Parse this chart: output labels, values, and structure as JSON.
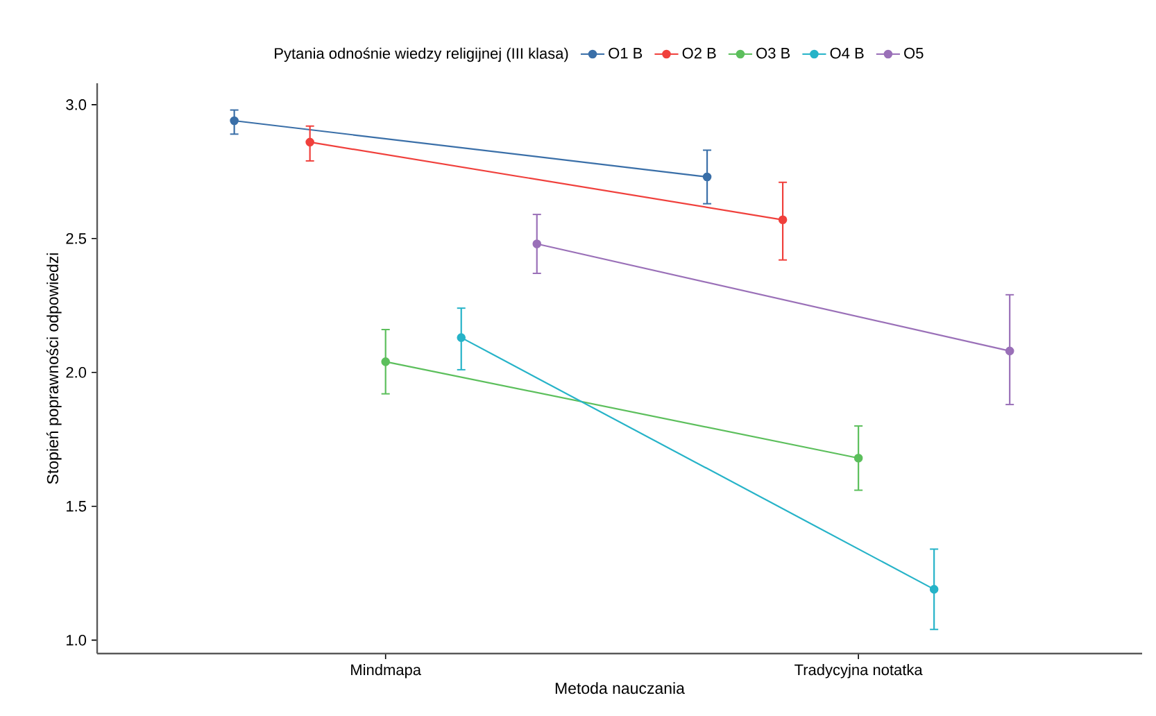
{
  "chart_data": {
    "type": "line",
    "legend_title": "Pytania odnośnie wiedzy religijnej (III klasa)",
    "xlabel": "Metoda nauczania",
    "ylabel": "Stopień poprawności odpowiedzi",
    "categories": [
      "Mindmapa",
      "Tradycyjna notatka"
    ],
    "ylim": [
      0.95,
      3.08
    ],
    "yticks": [
      {
        "value": 1,
        "label": "1.0"
      },
      {
        "value": 1.5,
        "label": "1.5"
      },
      {
        "value": 2,
        "label": "2.0"
      },
      {
        "value": 2.5,
        "label": "2.5"
      },
      {
        "value": 3,
        "label": "3.0"
      }
    ],
    "grid": false,
    "legend": "top",
    "marker": "circle",
    "line_style": "solid",
    "series": [
      {
        "name": "O1 B",
        "color": "#3a6fa8",
        "values": [
          2.94,
          2.73
        ],
        "errors": [
          [
            2.89,
            2.98
          ],
          [
            2.63,
            2.83
          ]
        ]
      },
      {
        "name": "O2 B",
        "color": "#f0403c",
        "values": [
          2.86,
          2.57
        ],
        "errors": [
          [
            2.79,
            2.92
          ],
          [
            2.42,
            2.71
          ]
        ]
      },
      {
        "name": "O3 B",
        "color": "#5cbf5c",
        "values": [
          2.04,
          1.68
        ],
        "errors": [
          [
            1.92,
            2.16
          ],
          [
            1.56,
            1.8
          ]
        ]
      },
      {
        "name": "O4 B",
        "color": "#26b3c8",
        "values": [
          2.13,
          1.19
        ],
        "errors": [
          [
            2.01,
            2.24
          ],
          [
            1.04,
            1.34
          ]
        ]
      },
      {
        "name": "O5",
        "color": "#9a70b8",
        "values": [
          2.48,
          2.08
        ],
        "errors": [
          [
            2.37,
            2.59
          ],
          [
            1.88,
            2.29
          ]
        ]
      }
    ]
  }
}
